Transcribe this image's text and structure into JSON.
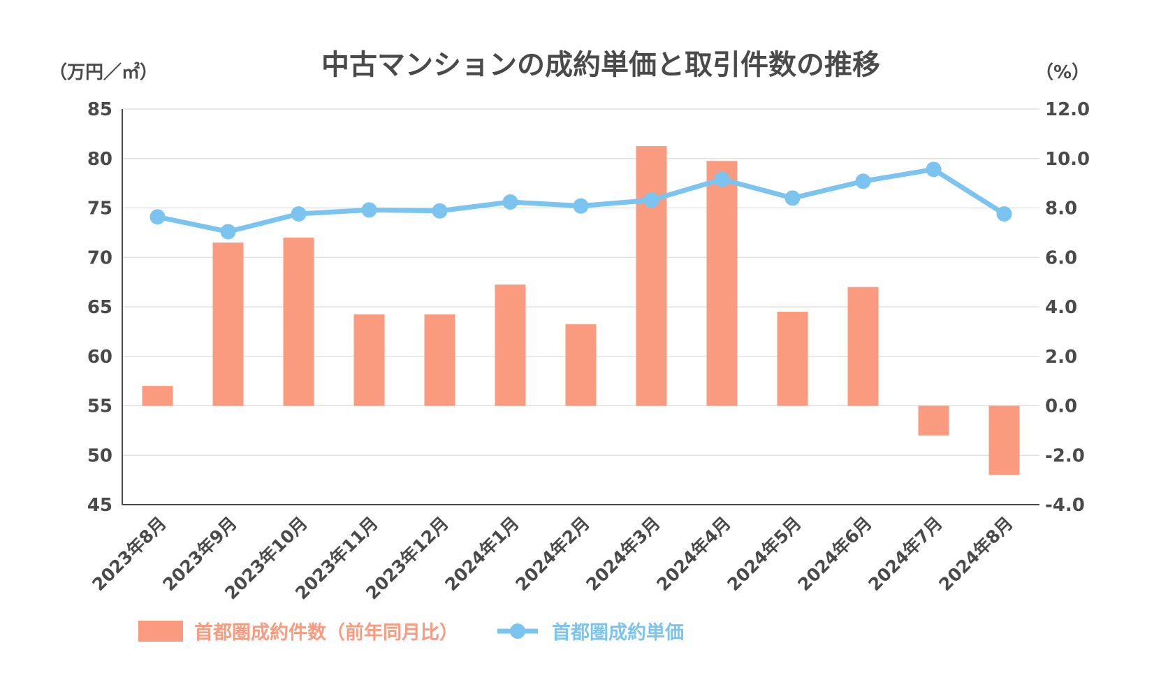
{
  "chart_data": {
    "type": "bar+line",
    "title": "中古マンションの成約単価と取引件数の推移",
    "left_unit": "（万円／㎡）",
    "right_unit": "（%）",
    "categories": [
      "2023年8月",
      "2023年9月",
      "2023年10月",
      "2023年11月",
      "2023年12月",
      "2024年1月",
      "2024年2月",
      "2024年3月",
      "2024年4月",
      "2024年5月",
      "2024年6月",
      "2024年7月",
      "2024年8月"
    ],
    "left_axis": {
      "min": 45,
      "max": 85,
      "ticks": [
        "85",
        "80",
        "75",
        "70",
        "65",
        "60",
        "55",
        "50",
        "45"
      ]
    },
    "right_axis": {
      "min": -4.0,
      "max": 12.0,
      "ticks": [
        "12.0",
        "10.0",
        "8.0",
        "6.0",
        "4.0",
        "2.0",
        "0.0",
        "-2.0",
        "-4.0"
      ]
    },
    "grid": true,
    "legend_position": "bottom-left",
    "series": [
      {
        "name": "首都圏成約件数（前年同月比）",
        "type": "bar",
        "axis": "right",
        "color": "#fa9a7f",
        "values": [
          0.8,
          6.6,
          6.8,
          3.7,
          3.7,
          4.9,
          3.3,
          10.5,
          9.9,
          3.8,
          4.8,
          -1.2,
          -2.8
        ]
      },
      {
        "name": "首都圏成約単価",
        "type": "line",
        "axis": "left",
        "color": "#7cc4f0",
        "values": [
          74.1,
          72.6,
          74.4,
          74.8,
          74.7,
          75.6,
          75.2,
          75.8,
          77.9,
          76.0,
          77.7,
          78.9,
          74.4
        ]
      }
    ]
  }
}
